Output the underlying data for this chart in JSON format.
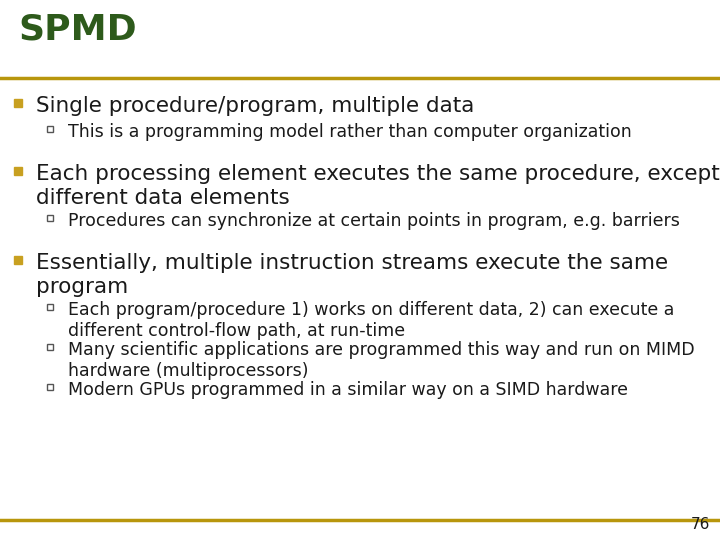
{
  "title": "SPMD",
  "title_color": "#2D5A1B",
  "title_fontsize": 26,
  "line_color": "#B8960C",
  "background_color": "#FFFFFF",
  "bullet_color": "#C8A020",
  "sub_bullet_color": "#555555",
  "text_color": "#1A1A1A",
  "page_number": "76",
  "bullets": [
    {
      "text": "Single procedure/program, multiple data",
      "fontsize": 15.5,
      "sub": [
        {
          "text": "This is a programming model rather than computer organization",
          "fontsize": 12.5
        }
      ]
    },
    {
      "text": "Each processing element executes the same procedure, except on\ndifferent data elements",
      "fontsize": 15.5,
      "sub": [
        {
          "text": "Procedures can synchronize at certain points in program, e.g. barriers",
          "fontsize": 12.5
        }
      ]
    },
    {
      "text": "Essentially, multiple instruction streams execute the same\nprogram",
      "fontsize": 15.5,
      "sub": [
        {
          "text": "Each program/procedure 1) works on different data, 2) can execute a\ndifferent control-flow path, at run-time",
          "fontsize": 12.5
        },
        {
          "text": "Many scientific applications are programmed this way and run on MIMD\nhardware (multiprocessors)",
          "fontsize": 12.5
        },
        {
          "text": "Modern GPUs programmed in a similar way on a SIMD hardware",
          "fontsize": 12.5
        }
      ]
    }
  ]
}
